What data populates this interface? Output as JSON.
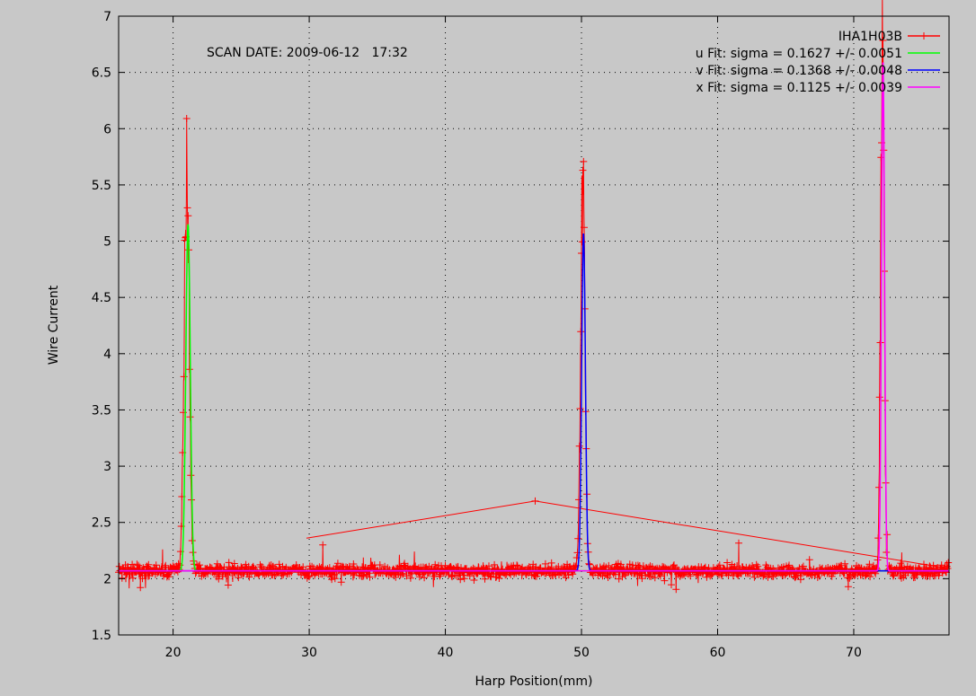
{
  "chart_data": {
    "type": "line",
    "annotation": "SCAN DATE: 2009-06-12   17:32",
    "xlabel": "Harp Position(mm)",
    "ylabel": "Wire Current",
    "xlim": [
      16,
      77
    ],
    "ylim": [
      1.5,
      7
    ],
    "grid": true,
    "legend_position": "top-right",
    "x_ticks": [
      {
        "value": 20,
        "label": "20"
      },
      {
        "value": 30,
        "label": "30"
      },
      {
        "value": 40,
        "label": "40"
      },
      {
        "value": 50,
        "label": "50"
      },
      {
        "value": 60,
        "label": "60"
      },
      {
        "value": 70,
        "label": "70"
      }
    ],
    "y_ticks": [
      {
        "value": 1.5,
        "label": "1.5"
      },
      {
        "value": 2,
        "label": "2"
      },
      {
        "value": 2.5,
        "label": "2.5"
      },
      {
        "value": 3,
        "label": "3"
      },
      {
        "value": 3.5,
        "label": "3.5"
      },
      {
        "value": 4,
        "label": "4"
      },
      {
        "value": 4.5,
        "label": "4.5"
      },
      {
        "value": 5,
        "label": "5"
      },
      {
        "value": 5.5,
        "label": "5.5"
      },
      {
        "value": 6,
        "label": "6"
      },
      {
        "value": 6.5,
        "label": "6.5"
      },
      {
        "value": 7,
        "label": "7"
      }
    ],
    "series": [
      {
        "name": "IHA1H03B",
        "color": "#ff0000",
        "style": "lines+crosses",
        "baseline": 2.07,
        "peaks": [
          {
            "x": 21.0,
            "height": 5.7
          },
          {
            "x": 50.1,
            "height": 5.7
          },
          {
            "x": 72.1,
            "height": 6.75
          }
        ]
      },
      {
        "name": "u  Fit: sigma = 0.1627 +/- 0.0051",
        "color": "#00ff00",
        "style": "line",
        "baseline": 2.07,
        "center": 21.1,
        "sigma": 0.1627,
        "amplitude": 5.15
      },
      {
        "name": "v  Fit: sigma = 0.1368 +/- 0.0048",
        "color": "#0000ff",
        "style": "line",
        "baseline": 2.07,
        "center": 50.15,
        "sigma": 0.1368,
        "amplitude": 5.07
      },
      {
        "name": "x  Fit: sigma = 0.1125 +/- 0.0039",
        "color": "#ff00ff",
        "style": "line",
        "baseline": 2.07,
        "center": 72.15,
        "sigma": 0.1125,
        "amplitude": 6.6
      }
    ]
  }
}
